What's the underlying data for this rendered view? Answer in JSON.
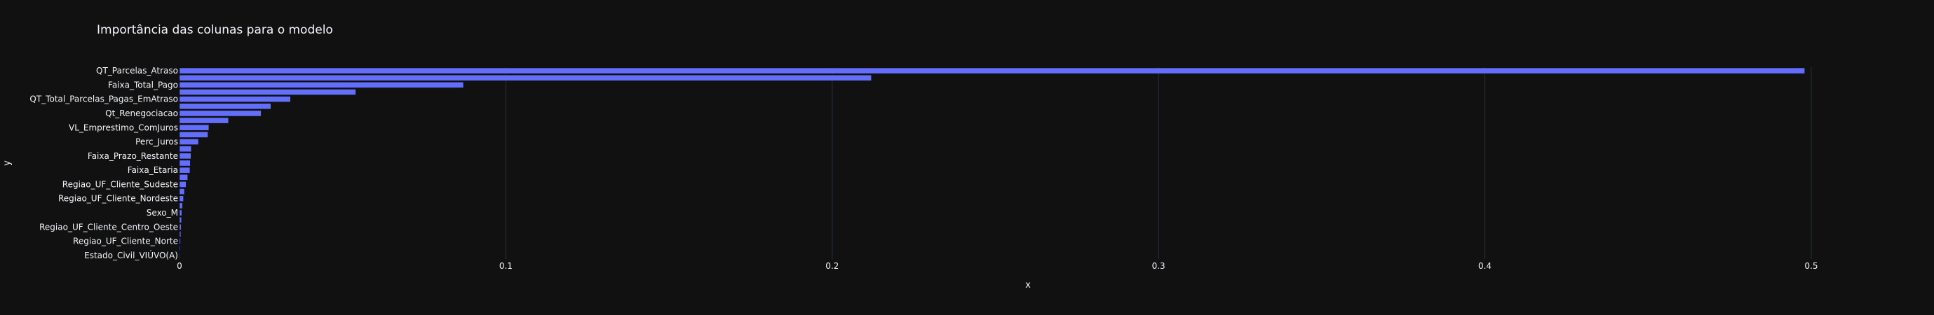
{
  "chart_data": {
    "type": "bar",
    "orientation": "horizontal",
    "title": "Importância das colunas para o modelo",
    "xlabel": "x",
    "ylabel": "y",
    "xlim": [
      0,
      0.52
    ],
    "x_ticks": [
      "0",
      "0.1",
      "0.2",
      "0.3",
      "0.4",
      "0.5"
    ],
    "grid": true,
    "bar_color": "#636efa",
    "background": "#111111",
    "y_tick_labels": [
      "QT_Parcelas_Atraso",
      "Faixa_Total_Pago",
      "QT_Total_Parcelas_Pagas_EmAtraso",
      "Qt_Renegociacao",
      "VL_Emprestimo_ComJuros",
      "Perc_Juros",
      "Faixa_Prazo_Restante",
      "Faixa_Etaria",
      "Regiao_UF_Cliente_Sudeste",
      "Regiao_UF_Cliente_Nordeste",
      "Sexo_M",
      "Regiao_UF_Cliente_Centro_Oeste",
      "Regiao_UF_Cliente_Norte",
      "Estado_Civil_VIÚVO(A)"
    ],
    "values": [
      0.498,
      0.212,
      0.087,
      0.054,
      0.034,
      0.028,
      0.025,
      0.015,
      0.009,
      0.0087,
      0.0058,
      0.0036,
      0.0035,
      0.0033,
      0.0032,
      0.0025,
      0.002,
      0.0015,
      0.0012,
      0.0009,
      0.0007,
      0.0006,
      0.0005,
      0.0004,
      0.0003,
      0.0002,
      0.0001
    ]
  }
}
